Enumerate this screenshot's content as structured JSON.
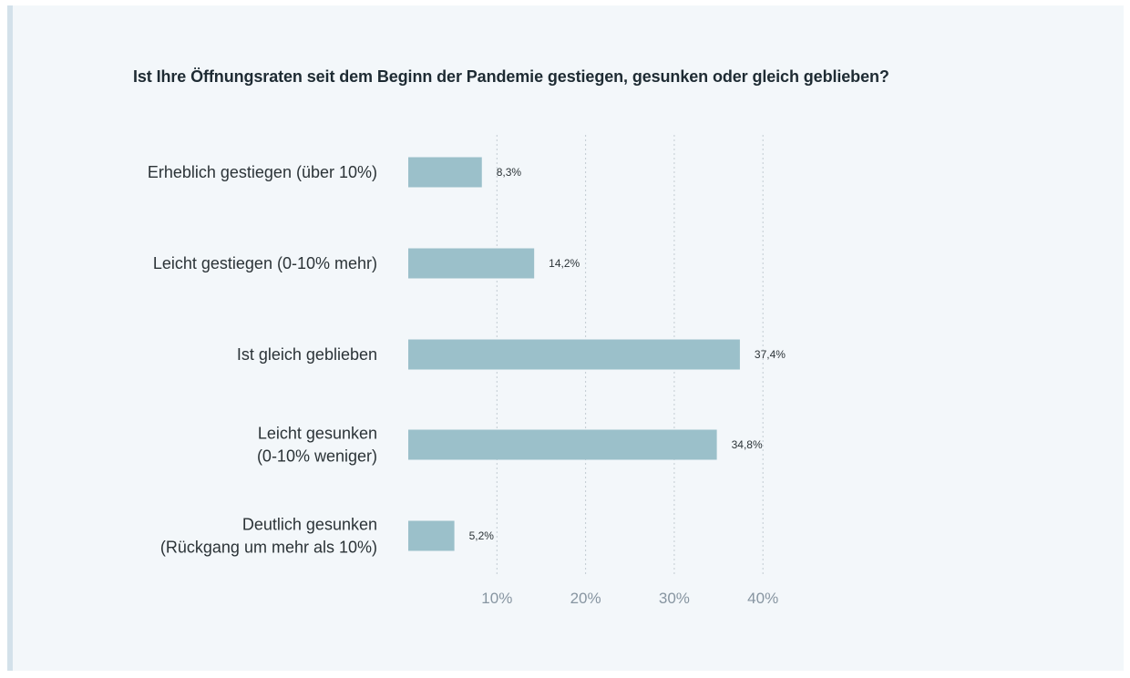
{
  "chart_data": {
    "type": "bar",
    "orientation": "horizontal",
    "title": "Ist Ihre Öffnungsraten seit dem Beginn der Pandemie gestiegen, gesunken oder gleich geblieben?",
    "categories": [
      [
        "Erheblich gestiegen (über 10%)"
      ],
      [
        "Leicht gestiegen (0-10% mehr)"
      ],
      [
        "Ist gleich geblieben"
      ],
      [
        "Leicht gesunken",
        "(0-10% weniger)"
      ],
      [
        "Deutlich gesunken",
        "(Rückgang um mehr als 10%)"
      ]
    ],
    "values": [
      8.3,
      14.2,
      37.4,
      34.8,
      5.2
    ],
    "value_labels": [
      "8,3%",
      "14,2%",
      "37,4%",
      "34,8%",
      "5,2%"
    ],
    "xticks": [
      10,
      20,
      30,
      40
    ],
    "xtick_labels": [
      "10%",
      "20%",
      "30%",
      "40%"
    ],
    "xlim": [
      0,
      40
    ],
    "grid": true,
    "bar_color": "#9bc0ca",
    "background_color": "#f3f7fa"
  }
}
